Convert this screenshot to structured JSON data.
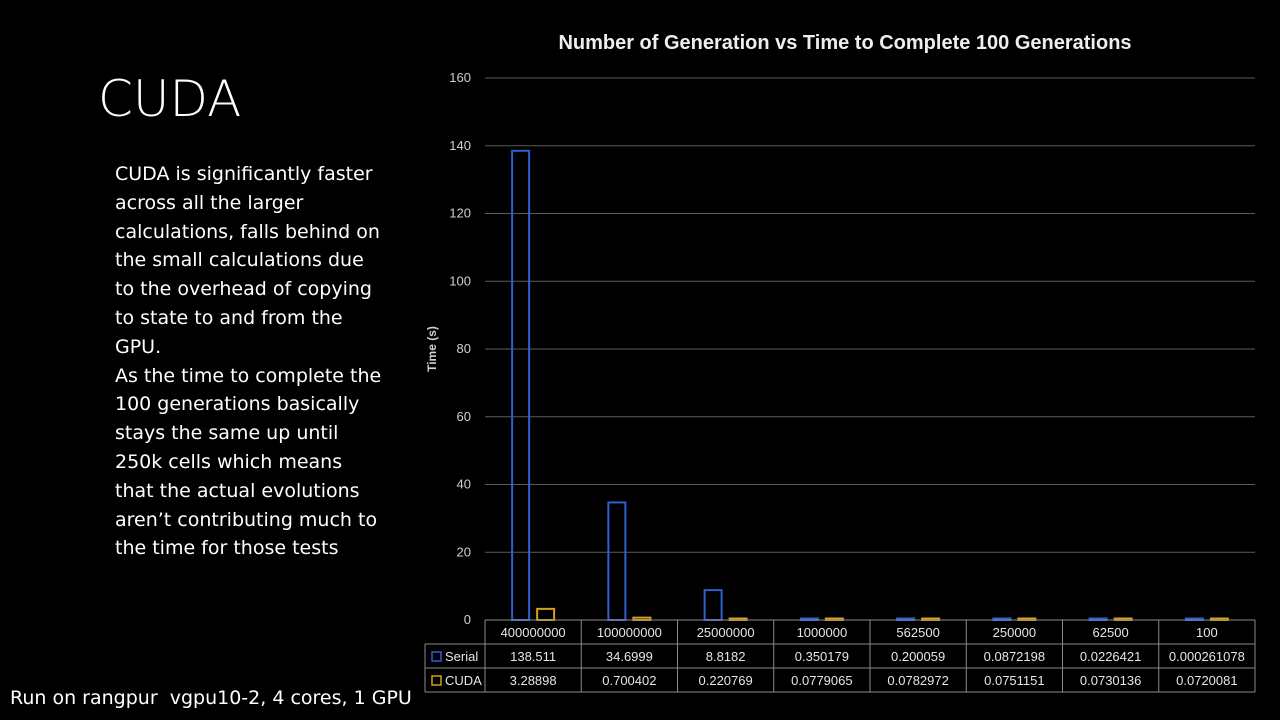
{
  "slide": {
    "title": "CUDA",
    "body_paragraphs": [
      "CUDA is significantly faster across all the larger calculations, falls behind on the small calculations due to the overhead of copying to state to and from the GPU.",
      "As the time to complete the 100 generations basically stays the same up until 250k cells which means that the actual evolutions aren’t contributing much to the time for those tests"
    ],
    "footer": "Run on rangpur  vgpu10-2, 4 cores, 1 GPU"
  },
  "chart_data": {
    "type": "bar",
    "title": "Number of Generation vs Time to Complete 100 Generations",
    "xlabel": "",
    "ylabel": "Time (s)",
    "ylim": [
      0,
      160
    ],
    "yticks": [
      "0",
      "20",
      "40",
      "60",
      "80",
      "100",
      "120",
      "140",
      "160"
    ],
    "grid": true,
    "data_table": true,
    "categories": [
      "400000000",
      "100000000",
      "25000000",
      "1000000",
      "562500",
      "250000",
      "62500",
      "100"
    ],
    "series": [
      {
        "name": "Serial",
        "color": "#2f5fd0",
        "values": [
          138.511,
          34.6999,
          8.8182,
          0.350179,
          0.200059,
          0.0872198,
          0.0226421,
          0.000261078
        ],
        "labels": [
          "138.511",
          "34.6999",
          "8.8182",
          "0.350179",
          "0.200059",
          "0.0872198",
          "0.0226421",
          "0.000261078"
        ]
      },
      {
        "name": "CUDA",
        "color": "#d4a017",
        "values": [
          3.28898,
          0.700402,
          0.220769,
          0.0779065,
          0.0782972,
          0.0751151,
          0.0730136,
          0.0720081
        ],
        "labels": [
          "3.28898",
          "0.700402",
          "0.220769",
          "0.0779065",
          "0.0782972",
          "0.0751151",
          "0.0730136",
          "0.0720081"
        ]
      }
    ]
  }
}
